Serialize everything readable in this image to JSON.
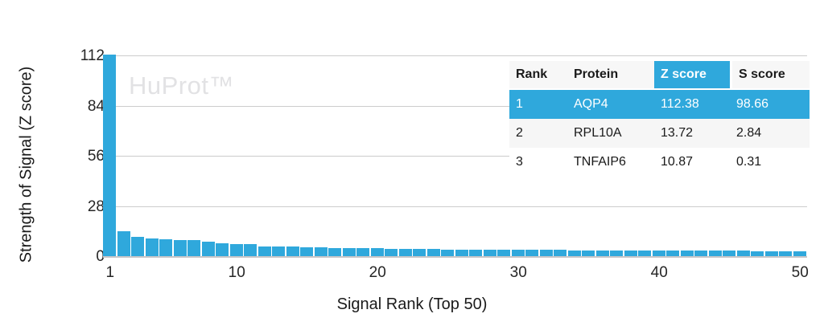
{
  "watermark": "HuProt™",
  "colors": {
    "accent": "#2fa8dc",
    "grid": "#cccccc",
    "watermark": "#e2e2e4",
    "table_header_bg": "#f7f7f7",
    "table_alt_row_bg": "#f6f6f6",
    "highlight_text": "#ffffff",
    "text": "#1a1a1a"
  },
  "chart_data": {
    "type": "bar",
    "title": "",
    "xlabel": "Signal Rank (Top 50)",
    "ylabel": "Strength of Signal (Z score)",
    "legend": "none",
    "grid": true,
    "ylim": [
      0,
      112
    ],
    "yticks": [
      0,
      28,
      56,
      84,
      112
    ],
    "xticks": [
      1,
      10,
      20,
      30,
      40,
      50
    ],
    "x": [
      1,
      2,
      3,
      4,
      5,
      6,
      7,
      8,
      9,
      10,
      11,
      12,
      13,
      14,
      15,
      16,
      17,
      18,
      19,
      20,
      21,
      22,
      23,
      24,
      25,
      26,
      27,
      28,
      29,
      30,
      31,
      32,
      33,
      34,
      35,
      36,
      37,
      38,
      39,
      40,
      41,
      42,
      43,
      44,
      45,
      46,
      47,
      48,
      49,
      50
    ],
    "values": [
      112.38,
      13.72,
      10.87,
      10.0,
      9.2,
      8.9,
      8.8,
      8.2,
      7.0,
      6.7,
      6.6,
      5.5,
      5.5,
      5.4,
      4.9,
      4.9,
      4.6,
      4.5,
      4.4,
      4.3,
      4.2,
      4.1,
      4.0,
      3.9,
      3.8,
      3.8,
      3.7,
      3.6,
      3.6,
      3.5,
      3.5,
      3.4,
      3.4,
      3.3,
      3.3,
      3.3,
      3.2,
      3.2,
      3.2,
      3.1,
      3.1,
      3.1,
      3.0,
      3.0,
      3.0,
      3.0,
      2.9,
      2.9,
      2.9,
      2.9
    ],
    "bar_color": "#2fa8dc"
  },
  "table": {
    "columns": [
      "Rank",
      "Protein",
      "Z score",
      "S score"
    ],
    "sorted_column": "Z score",
    "rows": [
      {
        "rank": "1",
        "protein": "AQP4",
        "z_score": "112.38",
        "s_score": "98.66",
        "highlighted": true
      },
      {
        "rank": "2",
        "protein": "RPL10A",
        "z_score": "13.72",
        "s_score": "2.84",
        "highlighted": false
      },
      {
        "rank": "3",
        "protein": "TNFAIP6",
        "z_score": "10.87",
        "s_score": "0.31",
        "highlighted": false
      }
    ]
  }
}
